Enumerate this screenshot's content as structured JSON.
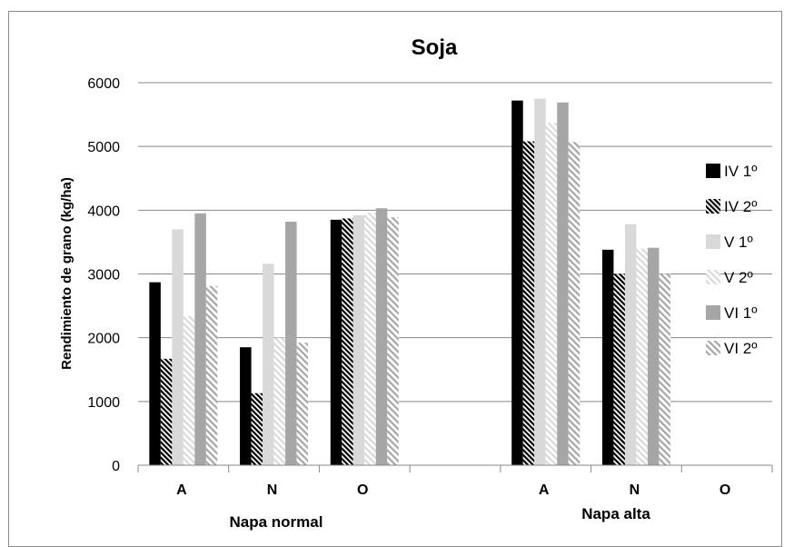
{
  "chart_data": {
    "type": "bar",
    "title": "Soja",
    "ylabel": "Rendimiento de grano (kg/ha)",
    "xlabel": "",
    "ylim": [
      0,
      6000
    ],
    "yticks": [
      0,
      1000,
      2000,
      3000,
      4000,
      5000,
      6000
    ],
    "grid": true,
    "legend_position": "right",
    "groups": [
      {
        "name": "Napa normal",
        "categories": [
          "A",
          "N",
          "O"
        ]
      },
      {
        "name": "Napa alta",
        "categories": [
          "A",
          "N",
          "O"
        ]
      }
    ],
    "categories": [
      "A",
      "N",
      "O",
      "",
      "A",
      "N",
      "O"
    ],
    "series": [
      {
        "name": "IV 1º",
        "color": "#000000",
        "pattern": "solid",
        "values": [
          2870,
          1850,
          3850,
          null,
          5720,
          3380,
          null
        ]
      },
      {
        "name": "IV 2º",
        "color": "#000000",
        "pattern": "dense-hatch",
        "values": [
          1670,
          1130,
          3870,
          null,
          5080,
          3000,
          null
        ]
      },
      {
        "name": "V 1º",
        "color": "#d9d9d9",
        "pattern": "solid",
        "values": [
          3700,
          3160,
          3920,
          null,
          5750,
          3780,
          null
        ]
      },
      {
        "name": "V 2º",
        "color": "#d9d9d9",
        "pattern": "hatch",
        "values": [
          2340,
          2000,
          3960,
          null,
          5370,
          3400,
          null
        ]
      },
      {
        "name": "VI 1º",
        "color": "#a6a6a6",
        "pattern": "solid",
        "values": [
          3950,
          3820,
          4030,
          null,
          5690,
          3410,
          null
        ]
      },
      {
        "name": "VI 2º",
        "color": "#a6a6a6",
        "pattern": "hatch",
        "values": [
          2810,
          1920,
          3890,
          null,
          5070,
          3000,
          null
        ]
      }
    ]
  }
}
